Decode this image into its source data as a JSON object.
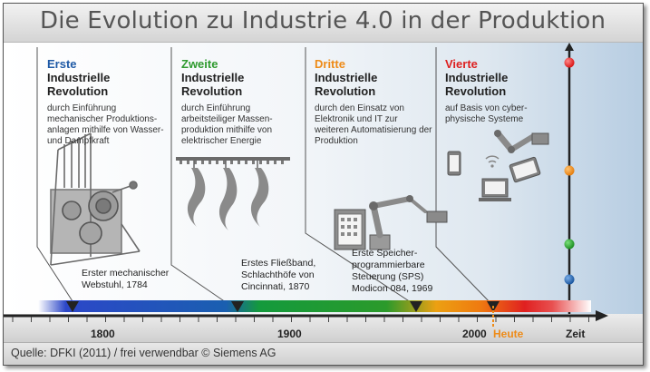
{
  "title": "Die Evolution zu Industrie 4.0 in der Produktion",
  "source": "Quelle: DFKI (2011) / frei verwendbar © Siemens AG",
  "colors": {
    "first": "#1f5aa6",
    "second": "#2e9a2e",
    "third": "#ee8b18",
    "fourth": "#dd2020",
    "today": "#ee8b18"
  },
  "revolutions": [
    {
      "ordinal": "Erste",
      "line1": "Industrielle",
      "line2": "Revolution",
      "desc": "durch Einführung mechanischer Produktions-anlagen mithilfe von Wasser- und Dampfkraft",
      "icon": "loom-icon"
    },
    {
      "ordinal": "Zweite",
      "line1": "Industrielle",
      "line2": "Revolution",
      "desc": "durch Einführung arbeitsteiliger Massen-produktion mithilfe von elektrischer Energie",
      "icon": "assembly-line-icon"
    },
    {
      "ordinal": "Dritte",
      "line1": "Industrielle",
      "line2": "Revolution",
      "desc": "durch den Einsatz von Elektronik und IT zur weiteren Automatisierung der Produktion",
      "icon": "robot-arm-icon"
    },
    {
      "ordinal": "Vierte",
      "line1": "Industrielle",
      "line2": "Revolution",
      "desc": "auf Basis von cyber-physische Systeme",
      "icon": "cyber-physical-systems-icon"
    }
  ],
  "events": [
    {
      "line1": "Erster mechanischer",
      "line2": "Webstuhl, 1784"
    },
    {
      "line1": "Erstes Fließband,",
      "line2": "Schlachthöfe von",
      "line3": "Cincinnati, 1870"
    },
    {
      "line1": "Erste Speicher-",
      "line2": "programmierbare",
      "line3": "Steuerung (SPS)",
      "line4": "Modicon 084, 1969"
    }
  ],
  "axis": {
    "ticks": [
      "1800",
      "1900",
      "2000"
    ],
    "today_label": "Heute",
    "axis_label": "Zeit"
  }
}
